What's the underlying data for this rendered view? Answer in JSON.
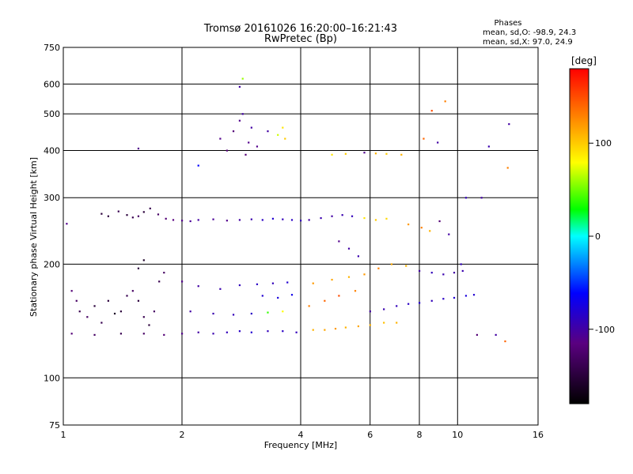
{
  "chart_data": {
    "type": "scatter",
    "title": "Tromsø 20161026 16:20:00–16:21:43",
    "subtitle": "RwPretec (Bp)",
    "xlabel": "Frequency [MHz]",
    "ylabel": "Stationary phase Virtual Height [km]",
    "x_scale": "log",
    "y_scale": "log",
    "xlim": [
      1,
      16
    ],
    "ylim": [
      75,
      750
    ],
    "x_ticks": [
      1,
      2,
      4,
      6,
      8,
      10,
      16
    ],
    "y_ticks": [
      75,
      100,
      200,
      300,
      400,
      500,
      600,
      750
    ],
    "grid": true,
    "phase_stats": {
      "header": "Phases",
      "o_line": "mean, sd,O: -98.9, 24.3",
      "x_line": "mean, sd,X:  97.0, 24.9"
    },
    "colorbar": {
      "label": "[deg]",
      "range": [
        -180,
        180
      ],
      "ticks": [
        -100,
        0,
        100
      ]
    },
    "series": [
      {
        "values": [
          {
            "x": 1.02,
            "y": 256,
            "phase": -110
          },
          {
            "x": 1.05,
            "y": 170,
            "phase": -120
          },
          {
            "x": 1.08,
            "y": 160,
            "phase": -130
          },
          {
            "x": 1.1,
            "y": 150,
            "phase": -140
          },
          {
            "x": 1.15,
            "y": 145,
            "phase": -130
          },
          {
            "x": 1.2,
            "y": 155,
            "phase": -150
          },
          {
            "x": 1.25,
            "y": 140,
            "phase": -140
          },
          {
            "x": 1.3,
            "y": 160,
            "phase": -150
          },
          {
            "x": 1.35,
            "y": 148,
            "phase": -160
          },
          {
            "x": 1.4,
            "y": 150,
            "phase": -150
          },
          {
            "x": 1.45,
            "y": 165,
            "phase": -140
          },
          {
            "x": 1.5,
            "y": 170,
            "phase": -130
          },
          {
            "x": 1.55,
            "y": 160,
            "phase": -150
          },
          {
            "x": 1.6,
            "y": 145,
            "phase": -140
          },
          {
            "x": 1.65,
            "y": 138,
            "phase": -150
          },
          {
            "x": 1.7,
            "y": 150,
            "phase": -130
          },
          {
            "x": 1.75,
            "y": 180,
            "phase": -140
          },
          {
            "x": 1.8,
            "y": 190,
            "phase": -130
          },
          {
            "x": 1.55,
            "y": 195,
            "phase": -150
          },
          {
            "x": 1.6,
            "y": 205,
            "phase": -160
          },
          {
            "x": 1.25,
            "y": 272,
            "phase": -150
          },
          {
            "x": 1.3,
            "y": 268,
            "phase": -150
          },
          {
            "x": 1.38,
            "y": 276,
            "phase": -140
          },
          {
            "x": 1.45,
            "y": 270,
            "phase": -150
          },
          {
            "x": 1.5,
            "y": 266,
            "phase": -140
          },
          {
            "x": 1.55,
            "y": 268,
            "phase": -130
          },
          {
            "x": 1.6,
            "y": 275,
            "phase": -150
          },
          {
            "x": 1.66,
            "y": 281,
            "phase": -140
          },
          {
            "x": 1.74,
            "y": 271,
            "phase": -130
          },
          {
            "x": 1.82,
            "y": 264,
            "phase": -120
          },
          {
            "x": 1.9,
            "y": 262,
            "phase": -115
          },
          {
            "x": 2.0,
            "y": 261,
            "phase": -110
          },
          {
            "x": 2.1,
            "y": 260,
            "phase": -105
          },
          {
            "x": 2.2,
            "y": 262,
            "phase": -100
          },
          {
            "x": 2.4,
            "y": 263,
            "phase": -105
          },
          {
            "x": 2.6,
            "y": 261,
            "phase": -110
          },
          {
            "x": 2.8,
            "y": 262,
            "phase": -100
          },
          {
            "x": 3.0,
            "y": 263,
            "phase": -95
          },
          {
            "x": 3.2,
            "y": 262,
            "phase": -85
          },
          {
            "x": 3.4,
            "y": 264,
            "phase": -80
          },
          {
            "x": 3.6,
            "y": 263,
            "phase": -90
          },
          {
            "x": 3.8,
            "y": 262,
            "phase": -85
          },
          {
            "x": 4.0,
            "y": 261,
            "phase": -90
          },
          {
            "x": 1.55,
            "y": 405,
            "phase": -110
          },
          {
            "x": 2.2,
            "y": 365,
            "phase": -60
          },
          {
            "x": 2.5,
            "y": 430,
            "phase": -110
          },
          {
            "x": 2.6,
            "y": 400,
            "phase": -120
          },
          {
            "x": 2.7,
            "y": 450,
            "phase": -120
          },
          {
            "x": 2.8,
            "y": 480,
            "phase": -110
          },
          {
            "x": 2.85,
            "y": 500,
            "phase": -100
          },
          {
            "x": 2.9,
            "y": 390,
            "phase": -120
          },
          {
            "x": 2.95,
            "y": 420,
            "phase": -110
          },
          {
            "x": 3.0,
            "y": 460,
            "phase": -100
          },
          {
            "x": 2.8,
            "y": 590,
            "phase": -100
          },
          {
            "x": 2.85,
            "y": 620,
            "phase": 60
          },
          {
            "x": 3.1,
            "y": 410,
            "phase": -110
          },
          {
            "x": 3.3,
            "y": 450,
            "phase": -100
          },
          {
            "x": 3.5,
            "y": 440,
            "phase": 70
          },
          {
            "x": 3.6,
            "y": 460,
            "phase": 90
          },
          {
            "x": 3.65,
            "y": 430,
            "phase": 100
          },
          {
            "x": 1.05,
            "y": 131,
            "phase": -120
          },
          {
            "x": 1.2,
            "y": 130,
            "phase": -130
          },
          {
            "x": 1.4,
            "y": 131,
            "phase": -140
          },
          {
            "x": 1.6,
            "y": 131,
            "phase": -130
          },
          {
            "x": 1.8,
            "y": 130,
            "phase": -120
          },
          {
            "x": 2.0,
            "y": 131,
            "phase": -110
          },
          {
            "x": 2.2,
            "y": 132,
            "phase": -100
          },
          {
            "x": 2.4,
            "y": 131,
            "phase": -95
          },
          {
            "x": 2.6,
            "y": 132,
            "phase": -90
          },
          {
            "x": 2.8,
            "y": 133,
            "phase": -85
          },
          {
            "x": 3.0,
            "y": 132,
            "phase": -80
          },
          {
            "x": 3.3,
            "y": 133,
            "phase": -90
          },
          {
            "x": 3.6,
            "y": 133,
            "phase": -85
          },
          {
            "x": 3.9,
            "y": 132,
            "phase": -90
          },
          {
            "x": 2.0,
            "y": 180,
            "phase": -110
          },
          {
            "x": 2.2,
            "y": 175,
            "phase": -100
          },
          {
            "x": 2.5,
            "y": 172,
            "phase": -95
          },
          {
            "x": 2.8,
            "y": 176,
            "phase": -90
          },
          {
            "x": 3.1,
            "y": 177,
            "phase": -85
          },
          {
            "x": 3.4,
            "y": 178,
            "phase": -90
          },
          {
            "x": 3.7,
            "y": 179,
            "phase": -80
          },
          {
            "x": 3.2,
            "y": 165,
            "phase": -80
          },
          {
            "x": 3.5,
            "y": 163,
            "phase": -75
          },
          {
            "x": 3.8,
            "y": 166,
            "phase": -70
          },
          {
            "x": 2.1,
            "y": 150,
            "phase": -100
          },
          {
            "x": 2.4,
            "y": 148,
            "phase": -95
          },
          {
            "x": 2.7,
            "y": 147,
            "phase": -90
          },
          {
            "x": 3.0,
            "y": 148,
            "phase": -85
          },
          {
            "x": 3.3,
            "y": 149,
            "phase": 40
          },
          {
            "x": 3.6,
            "y": 150,
            "phase": 80
          },
          {
            "x": 4.3,
            "y": 134,
            "phase": 110
          },
          {
            "x": 4.6,
            "y": 134,
            "phase": 115
          },
          {
            "x": 4.9,
            "y": 135,
            "phase": 120
          },
          {
            "x": 5.2,
            "y": 136,
            "phase": 110
          },
          {
            "x": 5.6,
            "y": 137,
            "phase": 115
          },
          {
            "x": 6.0,
            "y": 138,
            "phase": 110
          },
          {
            "x": 6.5,
            "y": 140,
            "phase": 105
          },
          {
            "x": 7.0,
            "y": 140,
            "phase": 110
          },
          {
            "x": 4.2,
            "y": 155,
            "phase": 130
          },
          {
            "x": 4.6,
            "y": 160,
            "phase": 140
          },
          {
            "x": 5.0,
            "y": 165,
            "phase": 150
          },
          {
            "x": 5.5,
            "y": 170,
            "phase": 130
          },
          {
            "x": 4.3,
            "y": 178,
            "phase": 120
          },
          {
            "x": 4.8,
            "y": 182,
            "phase": 115
          },
          {
            "x": 5.3,
            "y": 185,
            "phase": 110
          },
          {
            "x": 5.8,
            "y": 188,
            "phase": 120
          },
          {
            "x": 6.3,
            "y": 195,
            "phase": 130
          },
          {
            "x": 6.8,
            "y": 200,
            "phase": 115
          },
          {
            "x": 7.4,
            "y": 198,
            "phase": 110
          },
          {
            "x": 8.0,
            "y": 192,
            "phase": -100
          },
          {
            "x": 8.6,
            "y": 190,
            "phase": -90
          },
          {
            "x": 9.2,
            "y": 188,
            "phase": -95
          },
          {
            "x": 9.8,
            "y": 190,
            "phase": -100
          },
          {
            "x": 10.3,
            "y": 192,
            "phase": -95
          },
          {
            "x": 6.0,
            "y": 150,
            "phase": -100
          },
          {
            "x": 6.5,
            "y": 152,
            "phase": -95
          },
          {
            "x": 7.0,
            "y": 155,
            "phase": -90
          },
          {
            "x": 7.5,
            "y": 157,
            "phase": -85
          },
          {
            "x": 8.0,
            "y": 158,
            "phase": -80
          },
          {
            "x": 8.6,
            "y": 160,
            "phase": -90
          },
          {
            "x": 9.2,
            "y": 162,
            "phase": -85
          },
          {
            "x": 9.8,
            "y": 163,
            "phase": -80
          },
          {
            "x": 10.5,
            "y": 165,
            "phase": -75
          },
          {
            "x": 11.0,
            "y": 166,
            "phase": -80
          },
          {
            "x": 4.2,
            "y": 262,
            "phase": -100
          },
          {
            "x": 4.5,
            "y": 265,
            "phase": -95
          },
          {
            "x": 4.8,
            "y": 268,
            "phase": -100
          },
          {
            "x": 5.1,
            "y": 270,
            "phase": -95
          },
          {
            "x": 5.4,
            "y": 268,
            "phase": -90
          },
          {
            "x": 5.8,
            "y": 265,
            "phase": 90
          },
          {
            "x": 6.2,
            "y": 262,
            "phase": 100
          },
          {
            "x": 6.6,
            "y": 264,
            "phase": 95
          },
          {
            "x": 5.0,
            "y": 230,
            "phase": -110
          },
          {
            "x": 5.3,
            "y": 220,
            "phase": -100
          },
          {
            "x": 5.6,
            "y": 210,
            "phase": -95
          },
          {
            "x": 4.8,
            "y": 390,
            "phase": 90
          },
          {
            "x": 5.2,
            "y": 392,
            "phase": 100
          },
          {
            "x": 5.8,
            "y": 395,
            "phase": -110
          },
          {
            "x": 6.2,
            "y": 393,
            "phase": 110
          },
          {
            "x": 6.6,
            "y": 392,
            "phase": 100
          },
          {
            "x": 7.2,
            "y": 390,
            "phase": 110
          },
          {
            "x": 7.5,
            "y": 255,
            "phase": 120
          },
          {
            "x": 8.1,
            "y": 250,
            "phase": 130
          },
          {
            "x": 8.5,
            "y": 245,
            "phase": 110
          },
          {
            "x": 9.0,
            "y": 260,
            "phase": -120
          },
          {
            "x": 9.5,
            "y": 240,
            "phase": -100
          },
          {
            "x": 10.2,
            "y": 200,
            "phase": -90
          },
          {
            "x": 8.2,
            "y": 430,
            "phase": 140
          },
          {
            "x": 8.6,
            "y": 510,
            "phase": 150
          },
          {
            "x": 9.3,
            "y": 540,
            "phase": 130
          },
          {
            "x": 8.9,
            "y": 420,
            "phase": -100
          },
          {
            "x": 10.5,
            "y": 300,
            "phase": -90
          },
          {
            "x": 11.5,
            "y": 300,
            "phase": -100
          },
          {
            "x": 12.0,
            "y": 410,
            "phase": -95
          },
          {
            "x": 12.5,
            "y": 130,
            "phase": -100
          },
          {
            "x": 13.2,
            "y": 125,
            "phase": 140
          },
          {
            "x": 13.5,
            "y": 470,
            "phase": -100
          },
          {
            "x": 13.4,
            "y": 360,
            "phase": 130
          },
          {
            "x": 11.2,
            "y": 130,
            "phase": -120
          }
        ]
      }
    ]
  }
}
